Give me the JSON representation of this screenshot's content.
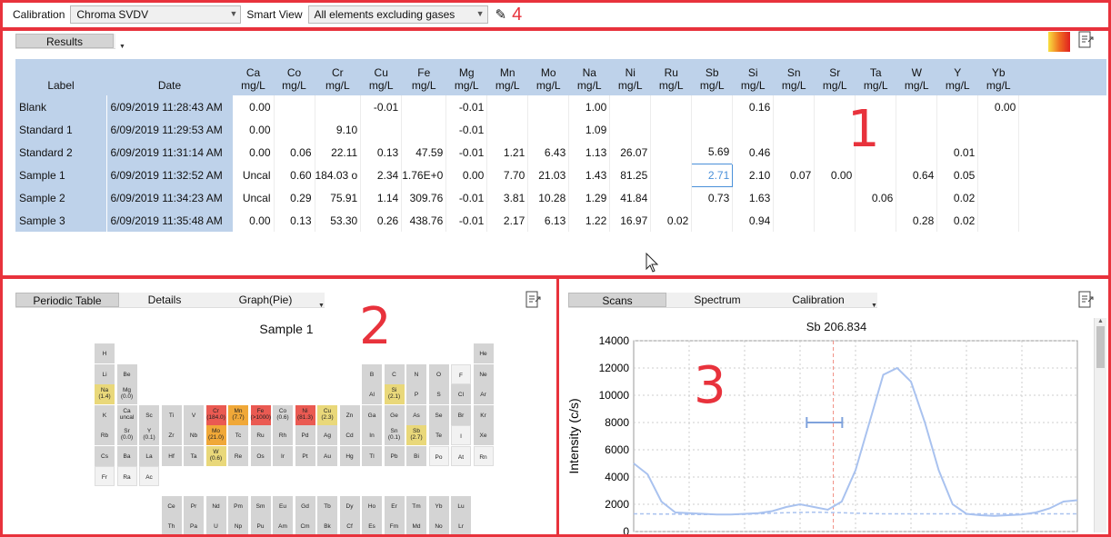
{
  "toolbar": {
    "calibration_label": "Calibration",
    "calibration_value": "Chroma SVDV",
    "smartview_label": "Smart View",
    "smartview_value": "All elements excluding gases",
    "marker": "4"
  },
  "results": {
    "tab": "Results",
    "marker": "1",
    "columns": [
      {
        "el": "Label"
      },
      {
        "el": "Date"
      },
      {
        "el": "Ca",
        "unit": "mg/L"
      },
      {
        "el": "Co",
        "unit": "mg/L"
      },
      {
        "el": "Cr",
        "unit": "mg/L"
      },
      {
        "el": "Cu",
        "unit": "mg/L"
      },
      {
        "el": "Fe",
        "unit": "mg/L"
      },
      {
        "el": "Mg",
        "unit": "mg/L"
      },
      {
        "el": "Mn",
        "unit": "mg/L"
      },
      {
        "el": "Mo",
        "unit": "mg/L"
      },
      {
        "el": "Na",
        "unit": "mg/L"
      },
      {
        "el": "Ni",
        "unit": "mg/L"
      },
      {
        "el": "Ru",
        "unit": "mg/L"
      },
      {
        "el": "Sb",
        "unit": "mg/L"
      },
      {
        "el": "Si",
        "unit": "mg/L"
      },
      {
        "el": "Sn",
        "unit": "mg/L"
      },
      {
        "el": "Sr",
        "unit": "mg/L"
      },
      {
        "el": "Ta",
        "unit": "mg/L"
      },
      {
        "el": "W",
        "unit": "mg/L"
      },
      {
        "el": "Y",
        "unit": "mg/L"
      },
      {
        "el": "Yb",
        "unit": "mg/L"
      }
    ],
    "rows": [
      [
        "Blank",
        "6/09/2019 11:28:43 AM",
        "0.00",
        "",
        "",
        "-0.01",
        "",
        "-0.01",
        "",
        "",
        "1.00",
        "",
        "",
        "",
        "0.16",
        "",
        "",
        "",
        "",
        "",
        "0.00"
      ],
      [
        "Standard 1",
        "6/09/2019 11:29:53 AM",
        "0.00",
        "",
        "9.10",
        "",
        "",
        "-0.01",
        "",
        "",
        "1.09",
        "",
        "",
        "",
        "",
        "",
        "",
        "",
        "",
        "",
        ""
      ],
      [
        "Standard 2",
        "6/09/2019 11:31:14 AM",
        "0.00",
        "0.06",
        "22.11",
        "0.13",
        "47.59",
        "-0.01",
        "1.21",
        "6.43",
        "1.13",
        "26.07",
        "",
        "5.69",
        "0.46",
        "",
        "",
        "",
        "",
        "0.01",
        ""
      ],
      [
        "Sample 1",
        "6/09/2019 11:32:52 AM",
        "Uncal",
        "0.60",
        "184.03 o",
        "2.34",
        "1.76E+0",
        "0.00",
        "7.70",
        "21.03",
        "1.43",
        "81.25",
        "",
        "2.71",
        "2.10",
        "0.07",
        "0.00",
        "",
        "0.64",
        "0.05",
        ""
      ],
      [
        "Sample 2",
        "6/09/2019 11:34:23 AM",
        "Uncal",
        "0.29",
        "75.91",
        "1.14",
        "309.76",
        "-0.01",
        "3.81",
        "10.28",
        "1.29",
        "41.84",
        "",
        "0.73",
        "1.63",
        "",
        "",
        "0.06",
        "",
        "0.02",
        ""
      ],
      [
        "Sample 3",
        "6/09/2019 11:35:48 AM",
        "0.00",
        "0.13",
        "53.30",
        "0.26",
        "438.76",
        "-0.01",
        "2.17",
        "6.13",
        "1.22",
        "16.97",
        "0.02",
        "",
        "0.94",
        "",
        "",
        "",
        "0.28",
        "0.02",
        ""
      ]
    ],
    "selected_cell": {
      "row": 3,
      "col": 13
    }
  },
  "periodic": {
    "tabs": [
      "Periodic Table",
      "Details",
      "Graph(Pie)"
    ],
    "title": "Sample 1",
    "marker": "2",
    "elements": [
      {
        "s": "H",
        "r": 1,
        "c": 1
      },
      {
        "s": "He",
        "r": 1,
        "c": 18
      },
      {
        "s": "Li",
        "r": 2,
        "c": 1
      },
      {
        "s": "Be",
        "r": 2,
        "c": 2
      },
      {
        "s": "B",
        "r": 2,
        "c": 13
      },
      {
        "s": "C",
        "r": 2,
        "c": 14
      },
      {
        "s": "N",
        "r": 2,
        "c": 15
      },
      {
        "s": "O",
        "r": 2,
        "c": 16
      },
      {
        "s": "F",
        "r": 2,
        "c": 17,
        "k": "n"
      },
      {
        "s": "Ne",
        "r": 2,
        "c": 18
      },
      {
        "s": "Na",
        "v": "(1.4)",
        "r": 3,
        "c": 1,
        "k": "y"
      },
      {
        "s": "Mg",
        "v": "(0.0)",
        "r": 3,
        "c": 2
      },
      {
        "s": "Al",
        "r": 3,
        "c": 13
      },
      {
        "s": "Si",
        "v": "(2.1)",
        "r": 3,
        "c": 14,
        "k": "y"
      },
      {
        "s": "P",
        "r": 3,
        "c": 15
      },
      {
        "s": "S",
        "r": 3,
        "c": 16
      },
      {
        "s": "Cl",
        "r": 3,
        "c": 17
      },
      {
        "s": "Ar",
        "r": 3,
        "c": 18
      },
      {
        "s": "K",
        "r": 4,
        "c": 1
      },
      {
        "s": "Ca",
        "v": "uncal",
        "r": 4,
        "c": 2
      },
      {
        "s": "Sc",
        "r": 4,
        "c": 3
      },
      {
        "s": "Ti",
        "r": 4,
        "c": 4
      },
      {
        "s": "V",
        "r": 4,
        "c": 5
      },
      {
        "s": "Cr",
        "v": "(184.0)",
        "r": 4,
        "c": 6,
        "k": "h"
      },
      {
        "s": "Mn",
        "v": "(7.7)",
        "r": 4,
        "c": 7,
        "k": "o"
      },
      {
        "s": "Fe",
        "v": "(>1000)",
        "r": 4,
        "c": 8,
        "k": "h"
      },
      {
        "s": "Co",
        "v": "(0.6)",
        "r": 4,
        "c": 9
      },
      {
        "s": "Ni",
        "v": "(81.3)",
        "r": 4,
        "c": 10,
        "k": "h"
      },
      {
        "s": "Cu",
        "v": "(2.3)",
        "r": 4,
        "c": 11,
        "k": "y"
      },
      {
        "s": "Zn",
        "r": 4,
        "c": 12
      },
      {
        "s": "Ga",
        "r": 4,
        "c": 13
      },
      {
        "s": "Ge",
        "r": 4,
        "c": 14
      },
      {
        "s": "As",
        "r": 4,
        "c": 15
      },
      {
        "s": "Se",
        "r": 4,
        "c": 16
      },
      {
        "s": "Br",
        "r": 4,
        "c": 17
      },
      {
        "s": "Kr",
        "r": 4,
        "c": 18
      },
      {
        "s": "Rb",
        "r": 5,
        "c": 1
      },
      {
        "s": "Sr",
        "v": "(0.0)",
        "r": 5,
        "c": 2
      },
      {
        "s": "Y",
        "v": "(0.1)",
        "r": 5,
        "c": 3
      },
      {
        "s": "Zr",
        "r": 5,
        "c": 4
      },
      {
        "s": "Nb",
        "r": 5,
        "c": 5
      },
      {
        "s": "Mo",
        "v": "(21.0)",
        "r": 5,
        "c": 6,
        "k": "o"
      },
      {
        "s": "Tc",
        "r": 5,
        "c": 7
      },
      {
        "s": "Ru",
        "r": 5,
        "c": 8
      },
      {
        "s": "Rh",
        "r": 5,
        "c": 9
      },
      {
        "s": "Pd",
        "r": 5,
        "c": 10
      },
      {
        "s": "Ag",
        "r": 5,
        "c": 11
      },
      {
        "s": "Cd",
        "r": 5,
        "c": 12
      },
      {
        "s": "In",
        "r": 5,
        "c": 13
      },
      {
        "s": "Sn",
        "v": "(0.1)",
        "r": 5,
        "c": 14
      },
      {
        "s": "Sb",
        "v": "(2.7)",
        "r": 5,
        "c": 15,
        "k": "y"
      },
      {
        "s": "Te",
        "r": 5,
        "c": 16
      },
      {
        "s": "I",
        "r": 5,
        "c": 17,
        "k": "n"
      },
      {
        "s": "Xe",
        "r": 5,
        "c": 18
      },
      {
        "s": "Cs",
        "r": 6,
        "c": 1
      },
      {
        "s": "Ba",
        "r": 6,
        "c": 2
      },
      {
        "s": "La",
        "r": 6,
        "c": 3
      },
      {
        "s": "Hf",
        "r": 6,
        "c": 4
      },
      {
        "s": "Ta",
        "r": 6,
        "c": 5
      },
      {
        "s": "W",
        "v": "(0.6)",
        "r": 6,
        "c": 6,
        "k": "y"
      },
      {
        "s": "Re",
        "r": 6,
        "c": 7
      },
      {
        "s": "Os",
        "r": 6,
        "c": 8
      },
      {
        "s": "Ir",
        "r": 6,
        "c": 9
      },
      {
        "s": "Pt",
        "r": 6,
        "c": 10
      },
      {
        "s": "Au",
        "r": 6,
        "c": 11
      },
      {
        "s": "Hg",
        "r": 6,
        "c": 12
      },
      {
        "s": "Tl",
        "r": 6,
        "c": 13
      },
      {
        "s": "Pb",
        "r": 6,
        "c": 14
      },
      {
        "s": "Bi",
        "r": 6,
        "c": 15
      },
      {
        "s": "Po",
        "r": 6,
        "c": 16,
        "k": "n"
      },
      {
        "s": "At",
        "r": 6,
        "c": 17,
        "k": "n"
      },
      {
        "s": "Rn",
        "r": 6,
        "c": 18,
        "k": "n"
      },
      {
        "s": "Fr",
        "r": 7,
        "c": 1,
        "k": "n"
      },
      {
        "s": "Ra",
        "r": 7,
        "c": 2,
        "k": "n"
      },
      {
        "s": "Ac",
        "r": 7,
        "c": 3,
        "k": "n"
      },
      {
        "s": "Ce",
        "r": 8,
        "c": 4
      },
      {
        "s": "Pr",
        "r": 8,
        "c": 5
      },
      {
        "s": "Nd",
        "r": 8,
        "c": 6
      },
      {
        "s": "Pm",
        "r": 8,
        "c": 7
      },
      {
        "s": "Sm",
        "r": 8,
        "c": 8
      },
      {
        "s": "Eu",
        "r": 8,
        "c": 9
      },
      {
        "s": "Gd",
        "r": 8,
        "c": 10
      },
      {
        "s": "Tb",
        "r": 8,
        "c": 11
      },
      {
        "s": "Dy",
        "r": 8,
        "c": 12
      },
      {
        "s": "Ho",
        "r": 8,
        "c": 13
      },
      {
        "s": "Er",
        "r": 8,
        "c": 14
      },
      {
        "s": "Tm",
        "r": 8,
        "c": 15
      },
      {
        "s": "Yb",
        "r": 8,
        "c": 16
      },
      {
        "s": "Lu",
        "r": 8,
        "c": 17
      },
      {
        "s": "Th",
        "r": 9,
        "c": 4
      },
      {
        "s": "Pa",
        "r": 9,
        "c": 5
      },
      {
        "s": "U",
        "r": 9,
        "c": 6
      },
      {
        "s": "Np",
        "r": 9,
        "c": 7
      },
      {
        "s": "Pu",
        "r": 9,
        "c": 8
      },
      {
        "s": "Am",
        "r": 9,
        "c": 9
      },
      {
        "s": "Cm",
        "r": 9,
        "c": 10
      },
      {
        "s": "Bk",
        "r": 9,
        "c": 11
      },
      {
        "s": "Cf",
        "r": 9,
        "c": 12
      },
      {
        "s": "Es",
        "r": 9,
        "c": 13
      },
      {
        "s": "Fm",
        "r": 9,
        "c": 14
      },
      {
        "s": "Md",
        "r": 9,
        "c": 15
      },
      {
        "s": "No",
        "r": 9,
        "c": 16
      },
      {
        "s": "Lr",
        "r": 9,
        "c": 17
      }
    ]
  },
  "scans": {
    "tabs": [
      "Scans",
      "Spectrum",
      "Calibration"
    ],
    "marker": "3",
    "chart_data": {
      "type": "line",
      "title": "Sb 206.834",
      "ylabel": "Intensity (c/s)",
      "xlabel": "",
      "ylim": [
        0,
        14000
      ],
      "yticks": [
        0,
        2000,
        4000,
        6000,
        8000,
        10000,
        12000,
        14000
      ],
      "series": [
        {
          "values": [
            5000,
            4200,
            2200,
            1400,
            1350,
            1300,
            1250,
            1250,
            1300,
            1350,
            1500,
            1800,
            2000,
            1800,
            1600,
            2200,
            4500,
            8000,
            11500,
            12000,
            11000,
            8000,
            4500,
            2000,
            1300,
            1200,
            1150,
            1200,
            1250,
            1400,
            1700,
            2200,
            2300
          ]
        },
        {
          "values": [
            1300,
            1300,
            1280,
            1280,
            1260,
            1250,
            1250,
            1250,
            1260,
            1300,
            1350,
            1380,
            1400,
            1420,
            1400,
            1380,
            1350,
            1320,
            1300,
            1300,
            1300,
            1300,
            1300,
            1300,
            1300,
            1300,
            1300,
            1300,
            1300,
            1300,
            1300,
            1300,
            1300
          ]
        }
      ],
      "marker_line": 0.45,
      "error_bar": {
        "y": 8000,
        "x_from": 0.39,
        "x_to": 0.47
      }
    },
    "colors": {
      "line": "#a9c2ef",
      "marker": "#f08a80"
    }
  }
}
